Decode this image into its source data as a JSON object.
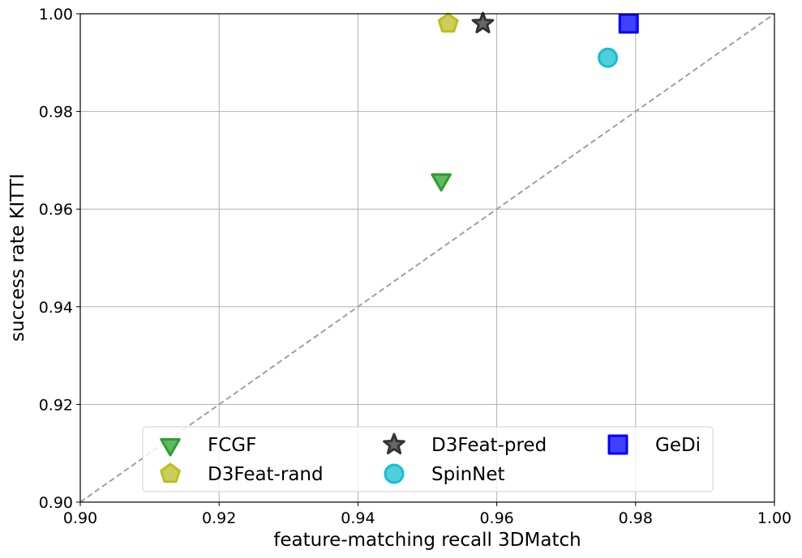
{
  "chart_data": {
    "type": "scatter",
    "title": "",
    "xlabel": "feature-matching recall 3DMatch",
    "ylabel": "success rate KITTI",
    "xlim": [
      0.9,
      1.0
    ],
    "ylim": [
      0.9,
      1.0
    ],
    "xticks": [
      "0.90",
      "0.92",
      "0.94",
      "0.96",
      "0.98",
      "1.00"
    ],
    "yticks": [
      "0.90",
      "0.92",
      "0.94",
      "0.96",
      "0.98",
      "1.00"
    ],
    "grid": true,
    "diagonal_reference_line": true,
    "legend_position": "bottom-center",
    "series": [
      {
        "name": "FCGF",
        "marker": "triangle-down",
        "color": "#2ca02c",
        "x": 0.952,
        "y": 0.966
      },
      {
        "name": "D3Feat-rand",
        "marker": "pentagon",
        "color": "#bcbd22",
        "x": 0.953,
        "y": 0.998
      },
      {
        "name": "D3Feat-pred",
        "marker": "star",
        "color": "#333333",
        "x": 0.958,
        "y": 0.998
      },
      {
        "name": "SpinNet",
        "marker": "circle",
        "color": "#17becf",
        "x": 0.976,
        "y": 0.991
      },
      {
        "name": "GeDi",
        "marker": "square",
        "color": "#0000ff",
        "x": 0.979,
        "y": 0.998
      }
    ]
  }
}
